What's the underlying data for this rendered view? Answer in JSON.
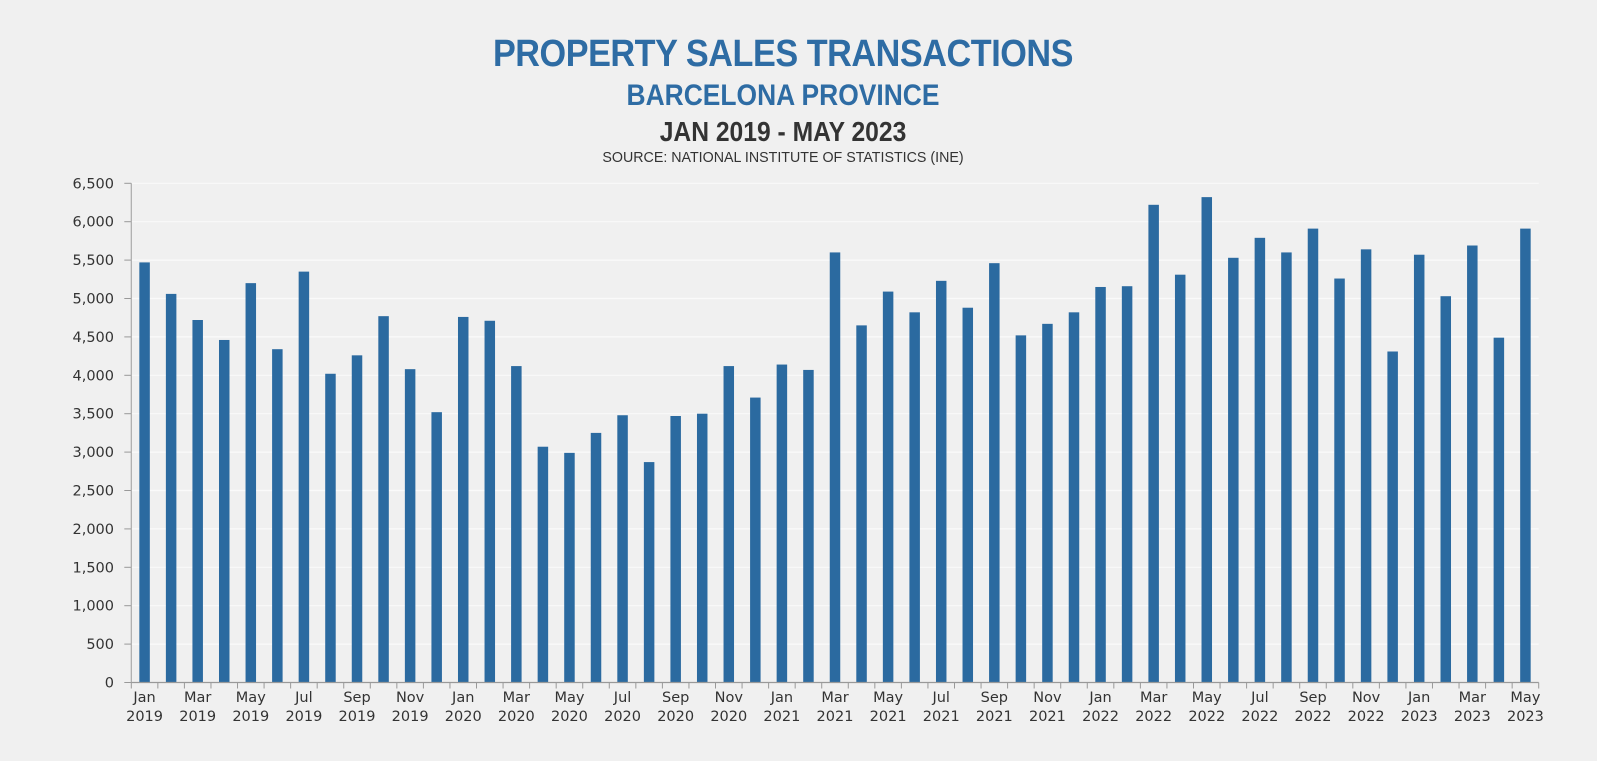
{
  "chart_data": {
    "type": "bar",
    "title": "PROPERTY SALES TRANSACTIONS",
    "subtitle": "BARCELONA PROVINCE",
    "period": "JAN 2019 - MAY 2023",
    "source": "SOURCE: NATIONAL INSTITUTE OF STATISTICS (INE)",
    "xlabel": "",
    "ylabel": "",
    "ylim": [
      0,
      6500
    ],
    "yticks": [
      0,
      500,
      1000,
      1500,
      2000,
      2500,
      3000,
      3500,
      4000,
      4500,
      5000,
      5500,
      6000,
      6500
    ],
    "ytick_labels": [
      "0",
      "500",
      "1,000",
      "1,500",
      "2,000",
      "2,500",
      "3,000",
      "3,500",
      "4,000",
      "4,500",
      "5,000",
      "5,500",
      "6,000",
      "6,500"
    ],
    "grid": true,
    "bar_color": "#2b6aa0",
    "categories": [
      "Jan 2019",
      "Feb 2019",
      "Mar 2019",
      "Apr 2019",
      "May 2019",
      "Jun 2019",
      "Jul 2019",
      "Aug 2019",
      "Sep 2019",
      "Oct 2019",
      "Nov 2019",
      "Dec 2019",
      "Jan 2020",
      "Feb 2020",
      "Mar 2020",
      "Apr 2020",
      "May 2020",
      "Jun 2020",
      "Jul 2020",
      "Aug 2020",
      "Sep 2020",
      "Oct 2020",
      "Nov 2020",
      "Dec 2020",
      "Jan 2021",
      "Feb 2021",
      "Mar 2021",
      "Apr 2021",
      "May 2021",
      "Jun 2021",
      "Jul 2021",
      "Aug 2021",
      "Sep 2021",
      "Oct 2021",
      "Nov 2021",
      "Dec 2021",
      "Jan 2022",
      "Feb 2022",
      "Mar 2022",
      "Apr 2022",
      "May 2022",
      "Jun 2022",
      "Jul 2022",
      "Aug 2022",
      "Sep 2022",
      "Oct 2022",
      "Nov 2022",
      "Dec 2022",
      "Jan 2023",
      "Feb 2023",
      "Mar 2023",
      "Apr 2023",
      "May 2023"
    ],
    "values": [
      5470,
      5060,
      4720,
      4460,
      5200,
      4340,
      5350,
      4020,
      4260,
      4770,
      4080,
      3520,
      4760,
      4710,
      4120,
      3070,
      2990,
      3250,
      3480,
      2870,
      3470,
      3500,
      4120,
      3710,
      4140,
      4070,
      5600,
      4650,
      5090,
      4820,
      5230,
      4880,
      5460,
      4520,
      4670,
      4820,
      5150,
      5160,
      6220,
      5310,
      6320,
      5530,
      5790,
      5600,
      5910,
      5260,
      5640,
      4310,
      5570,
      5030,
      5690,
      4490,
      5910
    ],
    "xtick_labels": [
      {
        "index": 0,
        "month": "Jan",
        "year": "2019"
      },
      {
        "index": 2,
        "month": "Mar",
        "year": "2019"
      },
      {
        "index": 4,
        "month": "May",
        "year": "2019"
      },
      {
        "index": 6,
        "month": "Jul",
        "year": "2019"
      },
      {
        "index": 8,
        "month": "Sep",
        "year": "2019"
      },
      {
        "index": 10,
        "month": "Nov",
        "year": "2019"
      },
      {
        "index": 12,
        "month": "Jan",
        "year": "2020"
      },
      {
        "index": 14,
        "month": "Mar",
        "year": "2020"
      },
      {
        "index": 16,
        "month": "May",
        "year": "2020"
      },
      {
        "index": 18,
        "month": "Jul",
        "year": "2020"
      },
      {
        "index": 20,
        "month": "Sep",
        "year": "2020"
      },
      {
        "index": 22,
        "month": "Nov",
        "year": "2020"
      },
      {
        "index": 24,
        "month": "Jan",
        "year": "2021"
      },
      {
        "index": 26,
        "month": "Mar",
        "year": "2021"
      },
      {
        "index": 28,
        "month": "May",
        "year": "2021"
      },
      {
        "index": 30,
        "month": "Jul",
        "year": "2021"
      },
      {
        "index": 32,
        "month": "Sep",
        "year": "2021"
      },
      {
        "index": 34,
        "month": "Nov",
        "year": "2021"
      },
      {
        "index": 36,
        "month": "Jan",
        "year": "2022"
      },
      {
        "index": 38,
        "month": "Mar",
        "year": "2022"
      },
      {
        "index": 40,
        "month": "May",
        "year": "2022"
      },
      {
        "index": 42,
        "month": "Jul",
        "year": "2022"
      },
      {
        "index": 44,
        "month": "Sep",
        "year": "2022"
      },
      {
        "index": 46,
        "month": "Nov",
        "year": "2022"
      },
      {
        "index": 48,
        "month": "Jan",
        "year": "2023"
      },
      {
        "index": 50,
        "month": "Mar",
        "year": "2023"
      },
      {
        "index": 52,
        "month": "May",
        "year": "2023"
      }
    ]
  }
}
